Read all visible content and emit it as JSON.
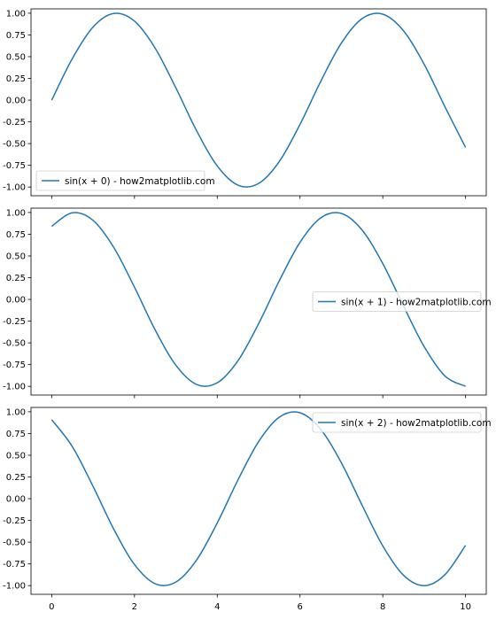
{
  "chart_data": [
    {
      "type": "line",
      "xlim": [
        -0.5,
        10.5
      ],
      "ylim": [
        -1.1,
        1.05
      ],
      "xticks": [
        0,
        2,
        4,
        6,
        8,
        10
      ],
      "xtick_labels_visible": false,
      "yticks": [
        1.0,
        0.75,
        0.5,
        0.25,
        0.0,
        -0.25,
        -0.5,
        -0.75,
        -1.0
      ],
      "ytick_labels": [
        "1.00",
        "0.75",
        "0.50",
        "0.25",
        "0.00",
        "-0.25",
        "-0.50",
        "-0.75",
        "-1.00"
      ],
      "grid": false,
      "legend_position": "lower-left",
      "series": [
        {
          "name": "sin(x + 0) - how2matplotlib.com",
          "color": "#1f77b4",
          "x": [
            0.0,
            0.5,
            1.0,
            1.5,
            2.0,
            2.5,
            3.0,
            3.5,
            4.0,
            4.5,
            5.0,
            5.5,
            6.0,
            6.5,
            7.0,
            7.5,
            8.0,
            8.5,
            9.0,
            9.5,
            10.0
          ],
          "y": [
            0.0,
            0.479,
            0.841,
            0.997,
            0.909,
            0.598,
            0.141,
            -0.351,
            -0.757,
            -0.978,
            -0.959,
            -0.706,
            -0.279,
            0.215,
            0.657,
            0.938,
            0.989,
            0.798,
            0.412,
            -0.075,
            -0.544
          ]
        }
      ]
    },
    {
      "type": "line",
      "xlim": [
        -0.5,
        10.5
      ],
      "ylim": [
        -1.1,
        1.05
      ],
      "xticks": [
        0,
        2,
        4,
        6,
        8,
        10
      ],
      "xtick_labels_visible": false,
      "yticks": [
        1.0,
        0.75,
        0.5,
        0.25,
        0.0,
        -0.25,
        -0.5,
        -0.75,
        -1.0
      ],
      "ytick_labels": [
        "1.00",
        "0.75",
        "0.50",
        "0.25",
        "0.00",
        "-0.25",
        "-0.50",
        "-0.75",
        "-1.00"
      ],
      "grid": false,
      "legend_position": "center-right",
      "series": [
        {
          "name": "sin(x + 1) - how2matplotlib.com",
          "color": "#1f77b4",
          "x": [
            0.0,
            0.5,
            1.0,
            1.5,
            2.0,
            2.5,
            3.0,
            3.5,
            4.0,
            4.5,
            5.0,
            5.5,
            6.0,
            6.5,
            7.0,
            7.5,
            8.0,
            8.5,
            9.0,
            9.5,
            10.0
          ],
          "y": [
            0.841,
            0.997,
            0.909,
            0.598,
            0.141,
            -0.351,
            -0.757,
            -0.978,
            -0.959,
            -0.706,
            -0.279,
            0.215,
            0.657,
            0.938,
            0.989,
            0.798,
            0.412,
            -0.075,
            -0.544,
            -0.88,
            -1.0
          ]
        }
      ]
    },
    {
      "type": "line",
      "xlim": [
        -0.5,
        10.5
      ],
      "ylim": [
        -1.1,
        1.05
      ],
      "xticks": [
        0,
        2,
        4,
        6,
        8,
        10
      ],
      "xtick_labels": [
        "0",
        "2",
        "4",
        "6",
        "8",
        "10"
      ],
      "xtick_labels_visible": true,
      "yticks": [
        1.0,
        0.75,
        0.5,
        0.25,
        0.0,
        -0.25,
        -0.5,
        -0.75,
        -1.0
      ],
      "ytick_labels": [
        "1.00",
        "0.75",
        "0.50",
        "0.25",
        "0.00",
        "-0.25",
        "-0.50",
        "-0.75",
        "-1.00"
      ],
      "grid": false,
      "legend_position": "upper-right",
      "series": [
        {
          "name": "sin(x + 2) - how2matplotlib.com",
          "color": "#1f77b4",
          "x": [
            0.0,
            0.5,
            1.0,
            1.5,
            2.0,
            2.5,
            3.0,
            3.5,
            4.0,
            4.5,
            5.0,
            5.5,
            6.0,
            6.5,
            7.0,
            7.5,
            8.0,
            8.5,
            9.0,
            9.5,
            10.0
          ],
          "y": [
            0.909,
            0.598,
            0.141,
            -0.351,
            -0.757,
            -0.978,
            -0.959,
            -0.706,
            -0.279,
            0.215,
            0.657,
            0.938,
            0.989,
            0.798,
            0.412,
            -0.075,
            -0.544,
            -0.88,
            -1.0,
            -0.875,
            -0.537
          ]
        }
      ]
    }
  ]
}
